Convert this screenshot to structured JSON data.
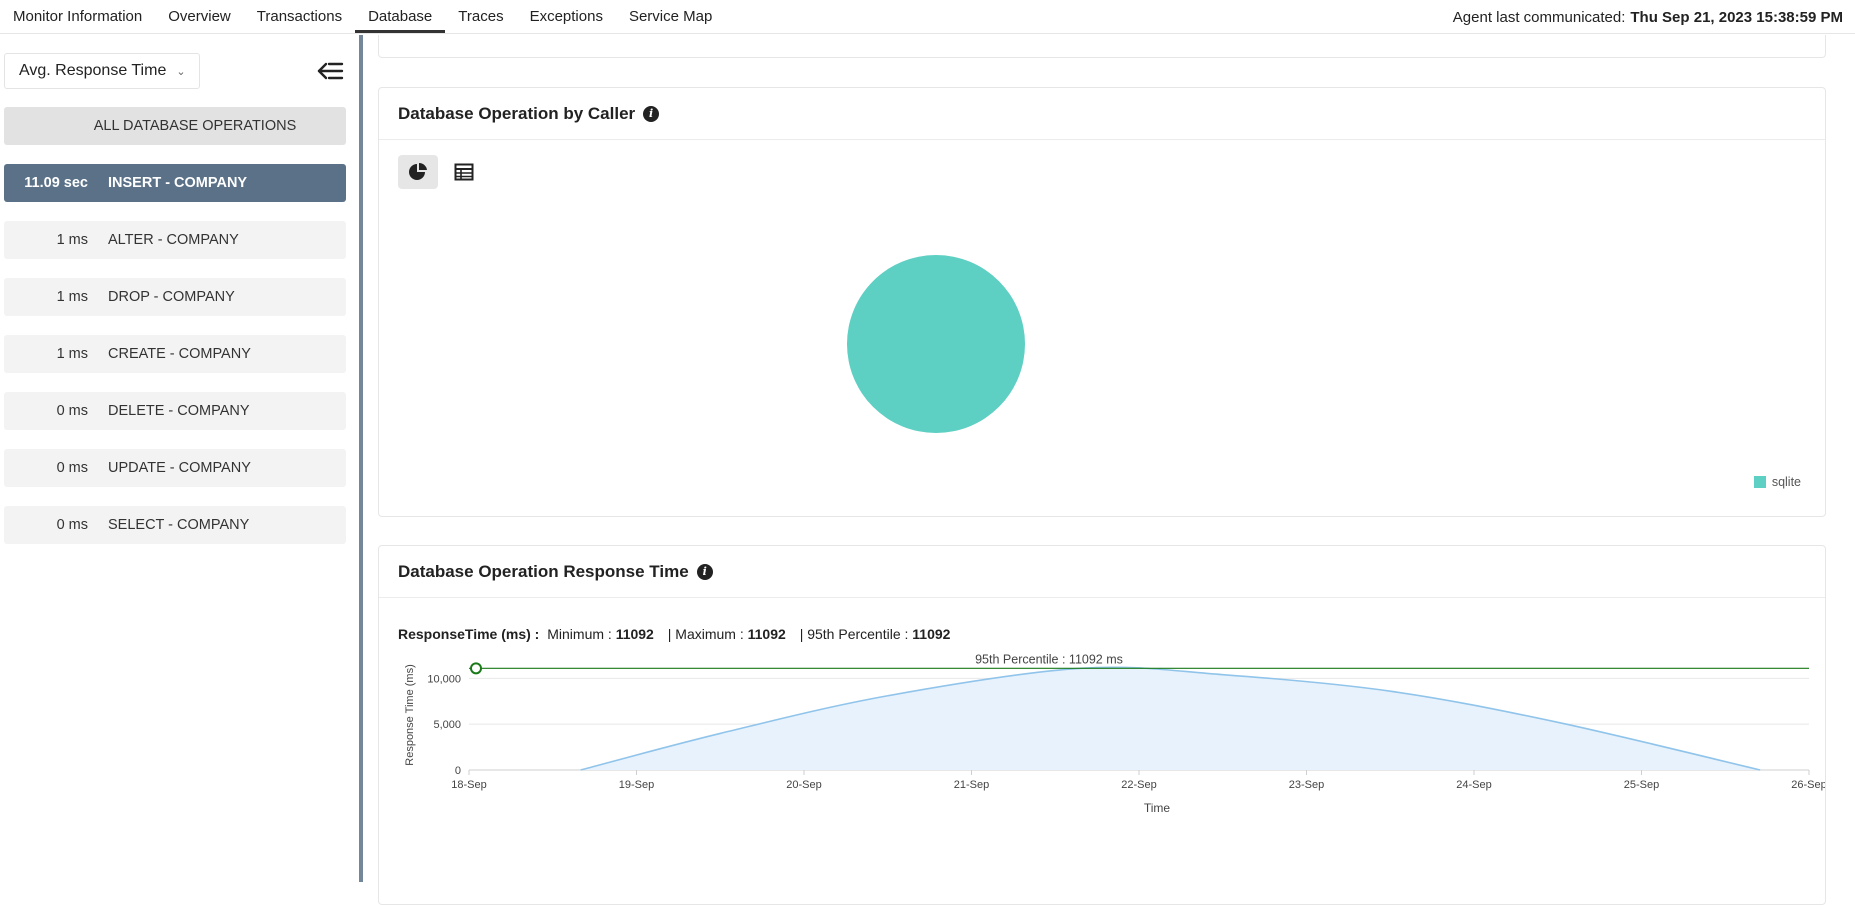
{
  "nav": {
    "tabs": [
      "Monitor Information",
      "Overview",
      "Transactions",
      "Database",
      "Traces",
      "Exceptions",
      "Service Map"
    ],
    "active_tab": "Database",
    "agent_label": "Agent last communicated:",
    "agent_time": "Thu Sep 21, 2023 15:38:59 PM"
  },
  "sidebar": {
    "metric_select": "Avg. Response Time",
    "all_label": "ALL DATABASE OPERATIONS",
    "operations": [
      {
        "value": "11.09 sec",
        "name": "INSERT - COMPANY",
        "active": true
      },
      {
        "value": "1 ms",
        "name": "ALTER - COMPANY"
      },
      {
        "value": "1 ms",
        "name": "DROP - COMPANY"
      },
      {
        "value": "1 ms",
        "name": "CREATE - COMPANY"
      },
      {
        "value": "0 ms",
        "name": "DELETE - COMPANY"
      },
      {
        "value": "0 ms",
        "name": "UPDATE - COMPANY"
      },
      {
        "value": "0 ms",
        "name": "SELECT - COMPANY"
      }
    ]
  },
  "caller_card": {
    "title": "Database Operation by Caller",
    "legend": "sqlite",
    "color": "#5ecfc3"
  },
  "response_card": {
    "title": "Database Operation Response Time",
    "stats_label": "ResponseTime (ms) :",
    "min_label": "Minimum :",
    "min_value": "11092",
    "max_label": "| Maximum :",
    "max_value": "11092",
    "p95_label": "| 95th Percentile :",
    "p95_value": "11092",
    "p95_annotation": "95th Percentile : 11092 ms"
  },
  "chart_data": [
    {
      "type": "pie",
      "slices": [
        {
          "name": "sqlite",
          "value": 100
        }
      ],
      "colors": [
        "#5ecfc3"
      ],
      "legend": "bottom-right"
    },
    {
      "type": "area",
      "xlabel": "Time",
      "ylabel": "Response Time (ms)",
      "x": [
        "18-Sep",
        "19-Sep",
        "20-Sep",
        "21-Sep",
        "22-Sep",
        "23-Sep",
        "24-Sep",
        "25-Sep",
        "26-Sep"
      ],
      "xlim": [
        "18-Sep",
        "26-Sep"
      ],
      "ylim": [
        0,
        12000
      ],
      "yticks": [
        0,
        5000,
        10000
      ],
      "ytick_labels": [
        "0",
        "5,000",
        "10,000"
      ],
      "series": [
        {
          "values": [
            {
              "x": "18-Sep 16:00",
              "y": 0
            },
            {
              "x": "19-Sep 12:00",
              "y": 3990
            },
            {
              "x": "20-Sep 12:00",
              "y": 8100
            },
            {
              "x": "21-Sep 15:38",
              "y": 11092
            },
            {
              "x": "22-Sep 12:00",
              "y": 10400
            },
            {
              "x": "23-Sep 12:00",
              "y": 8600
            },
            {
              "x": "24-Sep 12:00",
              "y": 5200
            },
            {
              "x": "25-Sep 17:00",
              "y": 0
            }
          ],
          "color": "#90c4ea"
        }
      ],
      "reference_lines": [
        {
          "name": "95th Percentile",
          "y": 11092,
          "color": "#1a7a1a"
        }
      ],
      "grid": true
    }
  ]
}
